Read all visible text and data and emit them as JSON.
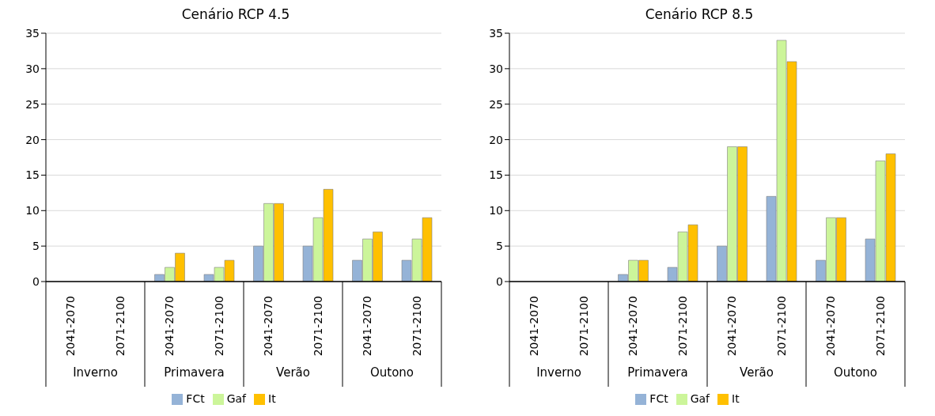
{
  "chart_data": [
    {
      "type": "bar",
      "title": "Cenário RCP 4.5",
      "categories": [
        "2041-2070",
        "2071-2100",
        "2041-2070",
        "2071-2100",
        "2041-2070",
        "2071-2100",
        "2041-2070",
        "2071-2100"
      ],
      "annotations": [
        "Inverno",
        "Primavera",
        "Verão",
        "Outono"
      ],
      "series": [
        {
          "name": "FCt",
          "color": "#95b3d7",
          "values": [
            0,
            0,
            1,
            1,
            5,
            5,
            3,
            3
          ]
        },
        {
          "name": "Gaf",
          "color": "#ccf59a",
          "values": [
            0,
            0,
            2,
            2,
            11,
            9,
            6,
            6
          ]
        },
        {
          "name": "It",
          "color": "#ffc000",
          "values": [
            0,
            0,
            4,
            3,
            11,
            13,
            7,
            9
          ]
        }
      ],
      "ylim": [
        0,
        35
      ],
      "yticks": [
        0,
        5,
        10,
        15,
        20,
        25,
        30,
        35
      ],
      "grid": "y",
      "legend": "bottom"
    },
    {
      "type": "bar",
      "title": "Cenário RCP 8.5",
      "categories": [
        "2041-2070",
        "2071-2100",
        "2041-2070",
        "2071-2100",
        "2041-2070",
        "2071-2100",
        "2041-2070",
        "2071-2100"
      ],
      "annotations": [
        "Inverno",
        "Primavera",
        "Verão",
        "Outono"
      ],
      "series": [
        {
          "name": "FCt",
          "color": "#95b3d7",
          "values": [
            0,
            0,
            1,
            2,
            5,
            12,
            3,
            6
          ]
        },
        {
          "name": "Gaf",
          "color": "#ccf59a",
          "values": [
            0,
            0,
            3,
            7,
            19,
            34,
            9,
            17
          ]
        },
        {
          "name": "It",
          "color": "#ffc000",
          "values": [
            0,
            0,
            3,
            8,
            19,
            31,
            9,
            18
          ]
        }
      ],
      "ylim": [
        0,
        35
      ],
      "yticks": [
        0,
        5,
        10,
        15,
        20,
        25,
        30,
        35
      ],
      "grid": "y",
      "legend": "bottom"
    }
  ]
}
